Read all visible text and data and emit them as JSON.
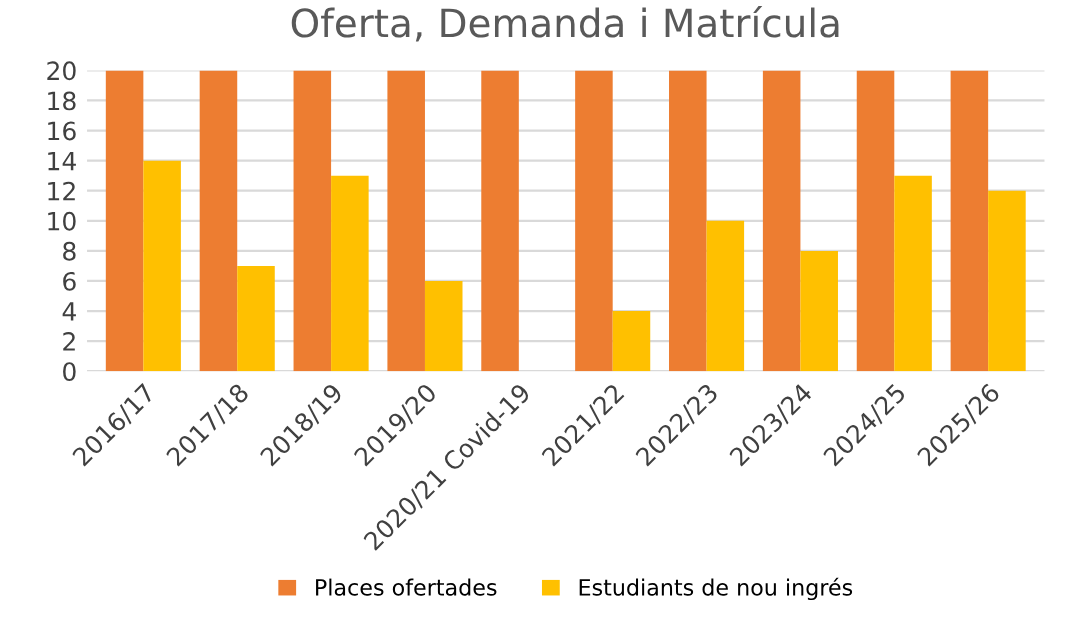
{
  "chart_data": {
    "type": "bar",
    "title": "Oferta, Demanda i Matrícula",
    "categories": [
      "2016/17",
      "2017/18",
      "2018/19",
      "2019/20",
      "2020/21 Covid-19",
      "2021/22",
      "2022/23",
      "2023/24",
      "2024/25",
      "2025/26"
    ],
    "series": [
      {
        "name": "Places ofertades",
        "color": "#ed7d31",
        "values": [
          20,
          20,
          20,
          20,
          20,
          20,
          20,
          20,
          20,
          20
        ]
      },
      {
        "name": "Estudiants de nou ingrés",
        "color": "#ffc000",
        "values": [
          14,
          7,
          13,
          6,
          0,
          4,
          10,
          8,
          13,
          12
        ]
      }
    ],
    "ylim": [
      0,
      20
    ],
    "yticks": [
      0,
      2,
      4,
      6,
      8,
      10,
      12,
      14,
      16,
      18,
      20
    ],
    "grid": "y",
    "legend": "bottom"
  }
}
